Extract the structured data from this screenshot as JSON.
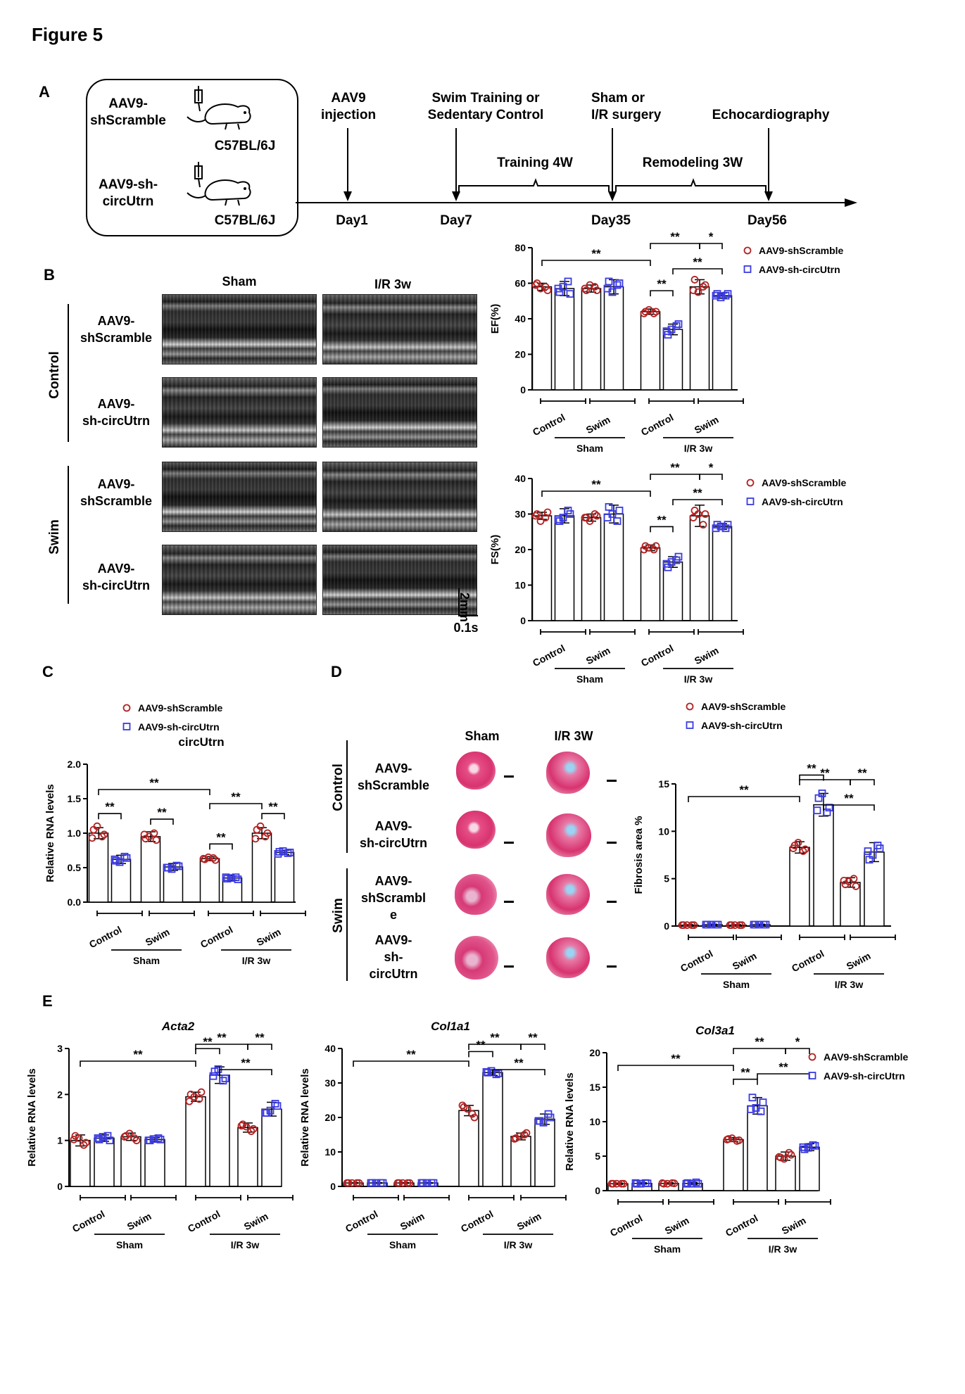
{
  "figure_title": "Figure 5",
  "panel_letters": {
    "A": "A",
    "B": "B",
    "C": "C",
    "D": "D",
    "E": "E"
  },
  "timeline": {
    "group1_line1": "AAV9-",
    "group1_line2": "shScramble",
    "group2_line1": "AAV9-sh-",
    "group2_line2": "circUtrn",
    "strain1": "C57BL/6J",
    "strain2": "C57BL/6J",
    "step1_line1": "AAV9",
    "step1_line2": "injection",
    "step2_line1": "Swim Training or",
    "step2_line2": "Sedentary Control",
    "step3_line1": "Sham or",
    "step3_line2": "I/R surgery",
    "step4": "Echocardiography",
    "phase1": "Training 4W",
    "phase2": "Remodeling 3W",
    "day1": "Day1",
    "day7": "Day7",
    "day35": "Day35",
    "day56": "Day56"
  },
  "panel_b": {
    "col_sham": "Sham",
    "col_ir": "I/R 3w",
    "group_control": "Control",
    "group_swim": "Swim",
    "row_a_line1": "AAV9-",
    "row_a_line2": "shScramble",
    "row_b_line1": "AAV9-",
    "row_b_line2": "sh-circUtrn",
    "scale_v": "2mm",
    "scale_h": "0.1s"
  },
  "panel_d": {
    "col_sham": "Sham",
    "col_ir": "I/R 3W",
    "group_control": "Control",
    "group_swim": "Swim",
    "row1_line1": "AAV9-",
    "row1_line2": "shScramble",
    "row2_line1": "AAV9-",
    "row2_line2": "sh-circUtrn",
    "row3_line1": "AAV9-",
    "row3_line2": "shScrambl",
    "row3_line3": "e",
    "row4_line1": "AAV9-",
    "row4_line2": "sh-",
    "row4_line3": "circUtrn"
  },
  "colors": {
    "scramble": "#b22222",
    "sh": "#3a3ae0"
  },
  "chart_data": [
    {
      "id": "ef",
      "type": "bar",
      "ylabel": "EF(%)",
      "title": "",
      "ylim": [
        0,
        80
      ],
      "yticks": [
        0,
        20,
        40,
        60,
        80
      ],
      "legend": [
        "AAV9-shScramble",
        "AAV9-sh-circUtrn"
      ],
      "group_labels": [
        "Control",
        "Swim",
        "Control",
        "Swim"
      ],
      "surgery_labels": [
        "Sham",
        "I/R 3w"
      ],
      "categories": [
        "Sham Control shScramble",
        "Sham Control sh-circUtrn",
        "Sham Swim shScramble",
        "Sham Swim sh-circUtrn",
        "I/R Control shScramble",
        "I/R Control sh-circUtrn",
        "I/R Swim shScramble",
        "I/R Swim sh-circUtrn"
      ],
      "values": [
        58,
        57,
        57,
        58,
        44,
        34,
        58,
        53
      ],
      "errors": [
        2,
        4,
        2,
        4,
        1.5,
        3,
        4,
        1.5
      ],
      "points": [
        [
          60,
          58,
          57,
          56,
          59
        ],
        [
          55,
          61,
          58,
          54,
          57
        ],
        [
          56,
          58,
          59,
          56,
          57
        ],
        [
          61,
          59,
          55,
          60,
          57
        ],
        [
          44,
          43,
          45,
          44,
          43
        ],
        [
          31,
          36,
          34,
          37,
          33
        ],
        [
          62,
          58,
          55,
          59,
          56
        ],
        [
          54,
          53,
          52,
          54,
          53
        ]
      ],
      "significance": [
        {
          "from": 0,
          "to": 4,
          "label": "**"
        },
        {
          "from": 4,
          "to": 5,
          "label": "**"
        },
        {
          "from": 4,
          "to": 6,
          "label": "**"
        },
        {
          "from": 5,
          "to": 7,
          "label": "**"
        },
        {
          "from": 6,
          "to": 7,
          "label": "*"
        }
      ]
    },
    {
      "id": "fs",
      "type": "bar",
      "ylabel": "FS(%)",
      "title": "",
      "ylim": [
        0,
        40
      ],
      "yticks": [
        0,
        10,
        20,
        30,
        40
      ],
      "legend": [
        "AAV9-shScramble",
        "AAV9-sh-circUtrn"
      ],
      "group_labels": [
        "Control",
        "Swim",
        "Control",
        "Swim"
      ],
      "surgery_labels": [
        "Sham",
        "I/R 3w"
      ],
      "categories": [
        "Sham Control shScramble",
        "Sham Control sh-circUtrn",
        "Sham Swim shScramble",
        "Sham Swim sh-circUtrn",
        "I/R Control shScramble",
        "I/R Control sh-circUtrn",
        "I/R Swim shScramble",
        "I/R Swim sh-circUtrn"
      ],
      "values": [
        29.5,
        29.5,
        29,
        30,
        20.5,
        16.5,
        29.5,
        26.5
      ],
      "errors": [
        1,
        2,
        1,
        2.5,
        0.8,
        1.5,
        3,
        0.8
      ],
      "points": [
        [
          30,
          29,
          28,
          30.5,
          29.5
        ],
        [
          28,
          31,
          29,
          30,
          28.5
        ],
        [
          29,
          30,
          28,
          29.5,
          29
        ],
        [
          32,
          28,
          30,
          31,
          29
        ],
        [
          21,
          20,
          20.5,
          21,
          20
        ],
        [
          15,
          17,
          16.5,
          18,
          16
        ],
        [
          31,
          27,
          30,
          30,
          29
        ],
        [
          27,
          26,
          26.5,
          27,
          26
        ]
      ],
      "significance": [
        {
          "from": 0,
          "to": 4,
          "label": "**"
        },
        {
          "from": 4,
          "to": 5,
          "label": "**"
        },
        {
          "from": 4,
          "to": 6,
          "label": "**"
        },
        {
          "from": 5,
          "to": 7,
          "label": "**"
        },
        {
          "from": 6,
          "to": 7,
          "label": "*"
        }
      ]
    },
    {
      "id": "circutrn",
      "type": "bar",
      "ylabel": "Relative RNA levels",
      "title": "circUtrn",
      "ylim": [
        0,
        2.0
      ],
      "yticks": [
        0.0,
        0.5,
        1.0,
        1.5,
        2.0
      ],
      "legend": [
        "AAV9-shScramble",
        "AAV9-sh-circUtrn"
      ],
      "group_labels": [
        "Control",
        "Swim",
        "Control",
        "Swim"
      ],
      "surgery_labels": [
        "Sham",
        "I/R 3w"
      ],
      "categories": [
        "Sham Control shScramble",
        "Sham Control sh-circUtrn",
        "Sham Swim shScramble",
        "Sham Swim sh-circUtrn",
        "I/R Control shScramble",
        "I/R Control sh-circUtrn",
        "I/R Swim shScramble",
        "I/R Swim sh-circUtrn"
      ],
      "values": [
        1.0,
        0.62,
        0.95,
        0.51,
        0.63,
        0.35,
        1.0,
        0.72
      ],
      "errors": [
        0.08,
        0.06,
        0.07,
        0.05,
        0.03,
        0.03,
        0.08,
        0.03
      ],
      "points": [
        [
          1.05,
          0.95,
          1.1,
          0.98,
          0.93
        ],
        [
          0.6,
          0.66,
          0.58,
          0.64,
          0.62
        ],
        [
          0.92,
          1.0,
          0.95,
          0.9,
          0.98
        ],
        [
          0.5,
          0.53,
          0.48,
          0.52,
          0.5
        ],
        [
          0.62,
          0.64,
          0.65,
          0.61,
          0.63
        ],
        [
          0.34,
          0.36,
          0.35,
          0.33,
          0.36
        ],
        [
          1.05,
          0.95,
          1.1,
          1.0,
          0.92
        ],
        [
          0.73,
          0.71,
          0.74,
          0.72,
          0.7
        ]
      ],
      "significance": [
        {
          "from": 0,
          "to": 1,
          "label": "**"
        },
        {
          "from": 2,
          "to": 3,
          "label": "**"
        },
        {
          "from": 0,
          "to": 4,
          "label": "**"
        },
        {
          "from": 4,
          "to": 5,
          "label": "**"
        },
        {
          "from": 4,
          "to": 6,
          "label": "**"
        },
        {
          "from": 6,
          "to": 7,
          "label": "**"
        }
      ]
    },
    {
      "id": "fibrosis",
      "type": "bar",
      "ylabel": "Fibrosis area %",
      "title": "",
      "ylim": [
        0,
        15
      ],
      "yticks": [
        0,
        5,
        10,
        15
      ],
      "legend": [
        "AAV9-shScramble",
        "AAV9-sh-circUtrn"
      ],
      "group_labels": [
        "Control",
        "Swim",
        "Control",
        "Swim"
      ],
      "surgery_labels": [
        "Sham",
        "I/R 3w"
      ],
      "categories": [
        "Sham Control shScramble",
        "Sham Control sh-circUtrn",
        "Sham Swim shScramble",
        "Sham Swim sh-circUtrn",
        "I/R Control shScramble",
        "I/R Control sh-circUtrn",
        "I/R Swim shScramble",
        "I/R Swim sh-circUtrn"
      ],
      "values": [
        0.1,
        0.15,
        0.1,
        0.15,
        8.3,
        12.8,
        4.6,
        7.8
      ],
      "errors": [
        0.05,
        0.05,
        0.05,
        0.05,
        0.6,
        1.2,
        0.5,
        1.0
      ],
      "points": [
        [
          0.1,
          0.1,
          0.1,
          0.1,
          0.1
        ],
        [
          0.15,
          0.15,
          0.15,
          0.15,
          0.15
        ],
        [
          0.1,
          0.1,
          0.1,
          0.1,
          0.1
        ],
        [
          0.15,
          0.15,
          0.15,
          0.15,
          0.15
        ],
        [
          8.5,
          7.9,
          8.8,
          8.1,
          8.2
        ],
        [
          13.5,
          12.0,
          14.0,
          12.5,
          12.2
        ],
        [
          4.4,
          5.0,
          4.7,
          4.2,
          4.8
        ],
        [
          7.0,
          8.5,
          7.5,
          8.2,
          7.9
        ]
      ],
      "significance": [
        {
          "from": 0,
          "to": 4,
          "label": "**"
        },
        {
          "from": 4,
          "to": 5,
          "label": "**"
        },
        {
          "from": 4,
          "to": 6,
          "label": "**"
        },
        {
          "from": 5,
          "to": 7,
          "label": "**"
        },
        {
          "from": 6,
          "to": 7,
          "label": "**"
        }
      ]
    },
    {
      "id": "acta2",
      "type": "bar",
      "ylabel": "Relative RNA levels",
      "title": "Acta2",
      "ylim": [
        0,
        3
      ],
      "yticks": [
        0,
        1,
        2,
        3
      ],
      "legend": [],
      "group_labels": [
        "Control",
        "Swim",
        "Control",
        "Swim"
      ],
      "surgery_labels": [
        "Sham",
        "I/R 3w"
      ],
      "categories": [
        "Sham Control shScramble",
        "Sham Control sh-circUtrn",
        "Sham Swim shScramble",
        "Sham Swim sh-circUtrn",
        "I/R Control shScramble",
        "I/R Control sh-circUtrn",
        "I/R Swim shScramble",
        "I/R Swim sh-circUtrn"
      ],
      "values": [
        1.0,
        1.05,
        1.08,
        1.02,
        1.95,
        2.42,
        1.28,
        1.68
      ],
      "errors": [
        0.12,
        0.07,
        0.08,
        0.04,
        0.1,
        0.18,
        0.1,
        0.15
      ],
      "points": [
        [
          1.1,
          0.9,
          1.05,
          0.95,
          1.02
        ],
        [
          1.02,
          1.1,
          1.08,
          1.0,
          1.05
        ],
        [
          1.1,
          1.05,
          1.15,
          1.0,
          1.08
        ],
        [
          1.0,
          1.05,
          1.03,
          1.02,
          1.0
        ],
        [
          2.0,
          1.9,
          1.95,
          2.05,
          1.85
        ],
        [
          2.5,
          2.3,
          2.55,
          2.35,
          2.4
        ],
        [
          1.35,
          1.2,
          1.3,
          1.25,
          1.32
        ],
        [
          1.6,
          1.8,
          1.65,
          1.75,
          1.6
        ]
      ],
      "significance": [
        {
          "from": 0,
          "to": 4,
          "label": "**"
        },
        {
          "from": 4,
          "to": 5,
          "label": "**"
        },
        {
          "from": 4,
          "to": 6,
          "label": "**"
        },
        {
          "from": 5,
          "to": 7,
          "label": "**"
        },
        {
          "from": 6,
          "to": 7,
          "label": "**"
        }
      ]
    },
    {
      "id": "col1a1",
      "type": "bar",
      "ylabel": "Relative RNA levels",
      "title": "Col1a1",
      "ylim": [
        0,
        40
      ],
      "yticks": [
        0,
        10,
        20,
        30,
        40
      ],
      "legend": [],
      "group_labels": [
        "Control",
        "Swim",
        "Control",
        "Swim"
      ],
      "surgery_labels": [
        "Sham",
        "I/R 3w"
      ],
      "categories": [
        "Sham Control shScramble",
        "Sham Control sh-circUtrn",
        "Sham Swim shScramble",
        "Sham Swim sh-circUtrn",
        "I/R Control shScramble",
        "I/R Control sh-circUtrn",
        "I/R Swim shScramble",
        "I/R Swim sh-circUtrn"
      ],
      "values": [
        1.0,
        1.0,
        1.0,
        1.0,
        22,
        33,
        14.5,
        19.5
      ],
      "errors": [
        0.1,
        0.1,
        0.1,
        0.1,
        1.5,
        0.8,
        1.0,
        1.5
      ],
      "points": [
        [
          1,
          1,
          1,
          1,
          1
        ],
        [
          1,
          1,
          1,
          1,
          1
        ],
        [
          1,
          1,
          1,
          1,
          1
        ],
        [
          1,
          1,
          1,
          1,
          1
        ],
        [
          23,
          21,
          22.5,
          20,
          23.5
        ],
        [
          33,
          32.5,
          33.5,
          32.8,
          33.2
        ],
        [
          14,
          15,
          14.5,
          15.5,
          13.8
        ],
        [
          19,
          21,
          18.5,
          20,
          19
        ]
      ],
      "significance": [
        {
          "from": 0,
          "to": 4,
          "label": "**"
        },
        {
          "from": 4,
          "to": 5,
          "label": "**"
        },
        {
          "from": 4,
          "to": 6,
          "label": "**"
        },
        {
          "from": 5,
          "to": 7,
          "label": "**"
        },
        {
          "from": 6,
          "to": 7,
          "label": "**"
        }
      ]
    },
    {
      "id": "col3a1",
      "type": "bar",
      "ylabel": "Relative RNA levels",
      "title": "Col3a1",
      "ylim": [
        0,
        20
      ],
      "yticks": [
        0,
        5,
        10,
        15,
        20
      ],
      "legend": [
        "AAV9-shScramble",
        "AAV9-sh-circUtrn"
      ],
      "group_labels": [
        "Control",
        "Swim",
        "Control",
        "Swim"
      ],
      "surgery_labels": [
        "Sham",
        "I/R 3w"
      ],
      "categories": [
        "Sham Control shScramble",
        "Sham Control sh-circUtrn",
        "Sham Swim shScramble",
        "Sham Swim sh-circUtrn",
        "I/R Control shScramble",
        "I/R Control sh-circUtrn",
        "I/R Swim shScramble",
        "I/R Swim sh-circUtrn"
      ],
      "values": [
        1.0,
        1.05,
        1.05,
        1.05,
        7.4,
        12.3,
        5.0,
        6.3
      ],
      "errors": [
        0.1,
        0.1,
        0.1,
        0.15,
        0.3,
        1.2,
        0.6,
        0.5
      ],
      "points": [
        [
          1,
          1,
          1,
          1,
          1
        ],
        [
          1,
          1.1,
          1,
          1.05,
          1.1
        ],
        [
          1,
          1.1,
          1,
          1.05,
          1.1
        ],
        [
          1.1,
          1.2,
          1,
          1,
          1
        ],
        [
          7.5,
          7.2,
          7.6,
          7.3,
          7.4
        ],
        [
          13.5,
          11.5,
          12.0,
          12.8,
          11.8
        ],
        [
          4.8,
          5.5,
          4.6,
          5.2,
          4.9
        ],
        [
          6.0,
          6.6,
          6.2,
          6.5,
          6.3
        ]
      ],
      "significance": [
        {
          "from": 0,
          "to": 4,
          "label": "**"
        },
        {
          "from": 4,
          "to": 5,
          "label": "**"
        },
        {
          "from": 4,
          "to": 6,
          "label": "**"
        },
        {
          "from": 5,
          "to": 7,
          "label": "**"
        },
        {
          "from": 6,
          "to": 7,
          "label": "*"
        }
      ]
    }
  ]
}
